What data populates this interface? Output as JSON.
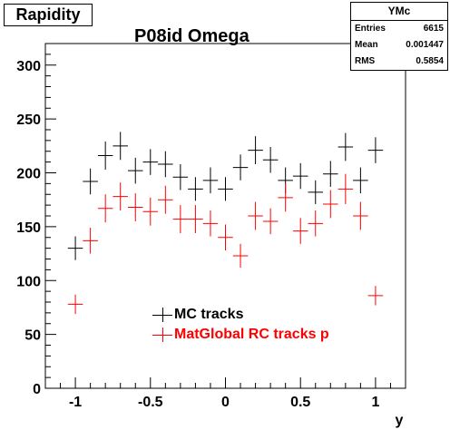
{
  "chart_data": {
    "type": "scatter",
    "title": "P08id Omega",
    "hist_name": "Rapidity",
    "xlabel": "y",
    "ylabel": "",
    "xlim": [
      -1.2,
      1.2
    ],
    "ylim": [
      0,
      320
    ],
    "x_ticks": [
      -1,
      -0.5,
      0,
      0.5,
      1
    ],
    "x_tick_labels": [
      "-1",
      "-0.5",
      "0",
      "0.5",
      "1"
    ],
    "y_ticks": [
      0,
      50,
      100,
      150,
      200,
      250,
      300
    ],
    "y_tick_labels": [
      "0",
      "50",
      "100",
      "150",
      "200",
      "250",
      "300"
    ],
    "bin_half_width": 0.05,
    "stats": {
      "name": "YMc",
      "rows": [
        {
          "label": "Entries",
          "value": "6615"
        },
        {
          "label": "Mean",
          "value": "0.001447"
        },
        {
          "label": "RMS",
          "value": "0.5854"
        }
      ]
    },
    "series": [
      {
        "name": "MC tracks",
        "color": "#000000",
        "x": [
          -1.0,
          -0.9,
          -0.8,
          -0.7,
          -0.6,
          -0.5,
          -0.4,
          -0.3,
          -0.2,
          -0.1,
          0.0,
          0.1,
          0.2,
          0.3,
          0.4,
          0.5,
          0.6,
          0.7,
          0.8,
          0.9,
          1.0
        ],
        "y": [
          130,
          192,
          216,
          225,
          202,
          210,
          208,
          196,
          185,
          193,
          185,
          205,
          221,
          212,
          193,
          197,
          182,
          199,
          224,
          193,
          221
        ],
        "err": [
          11,
          12,
          13,
          13,
          12,
          12,
          12,
          12,
          11,
          12,
          11,
          12,
          13,
          12,
          12,
          12,
          11,
          12,
          13,
          12,
          12
        ]
      },
      {
        "name": "MatGlobal RC tracks p",
        "color": "#ff0000",
        "x": [
          -1.0,
          -0.9,
          -0.8,
          -0.7,
          -0.6,
          -0.5,
          -0.4,
          -0.3,
          -0.2,
          -0.1,
          0.0,
          0.1,
          0.2,
          0.3,
          0.4,
          0.5,
          0.6,
          0.7,
          0.8,
          0.9,
          1.0
        ],
        "y": [
          78,
          137,
          167,
          178,
          168,
          164,
          175,
          157,
          157,
          153,
          140,
          123,
          160,
          155,
          177,
          146,
          153,
          171,
          185,
          160,
          86
        ],
        "err": [
          9,
          12,
          13,
          13,
          13,
          13,
          13,
          13,
          13,
          12,
          12,
          11,
          13,
          12,
          13,
          12,
          12,
          13,
          14,
          13,
          9
        ]
      }
    ],
    "legend_position": "bottom-center"
  }
}
